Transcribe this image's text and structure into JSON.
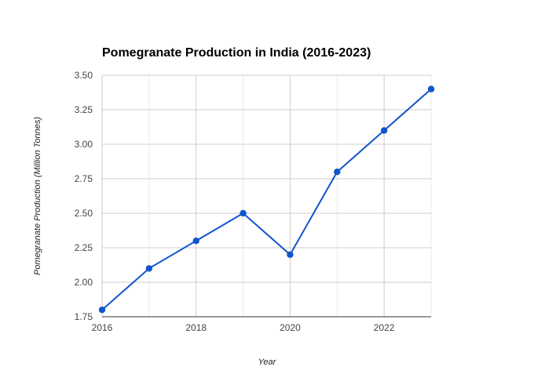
{
  "chart_data": {
    "type": "line",
    "title": "Pomegranate Production in India (2016-2023)",
    "xlabel": "Year",
    "ylabel": "Pomegranate Production (Million Tonnes)",
    "x": [
      2016,
      2017,
      2018,
      2019,
      2020,
      2021,
      2022,
      2023
    ],
    "series": [
      {
        "values": [
          1.8,
          2.1,
          2.3,
          2.5,
          2.2,
          2.8,
          3.1,
          3.4
        ],
        "color": "#1155cc"
      }
    ],
    "xlim": [
      2016,
      2023
    ],
    "ylim": [
      1.75,
      3.5
    ],
    "x_ticks": [
      "2016",
      "2018",
      "2020",
      "2022"
    ],
    "y_ticks": [
      "1.75",
      "2.00",
      "2.25",
      "2.50",
      "2.75",
      "3.00",
      "3.25",
      "3.50"
    ],
    "grid": true,
    "legend": "none"
  }
}
